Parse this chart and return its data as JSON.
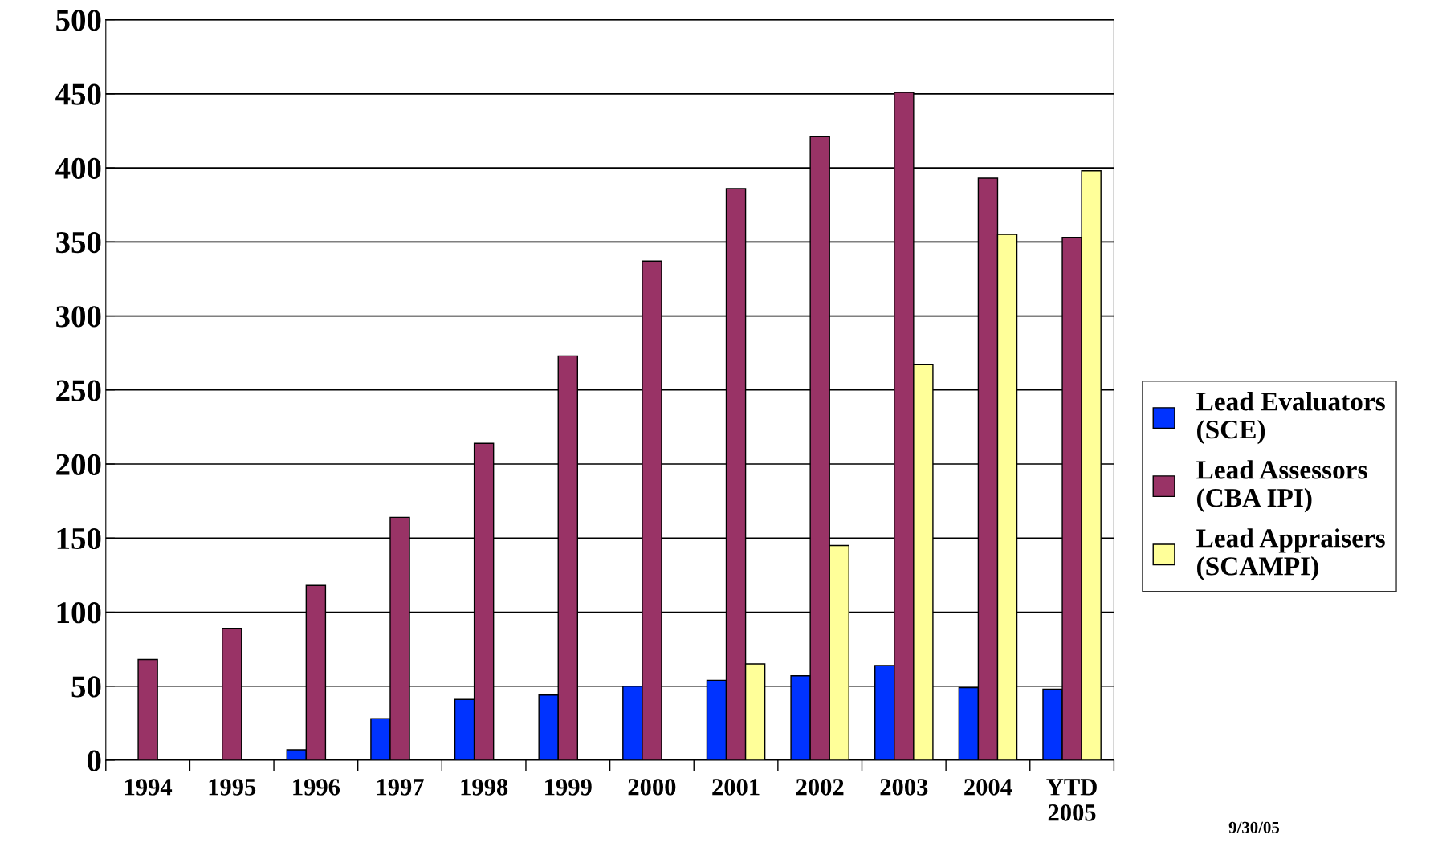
{
  "chart_data": {
    "type": "bar",
    "categories": [
      "1994",
      "1995",
      "1996",
      "1997",
      "1998",
      "1999",
      "2000",
      "2001",
      "2002",
      "2003",
      "2004",
      "YTD\n2005"
    ],
    "series": [
      {
        "name": "Lead Evaluators\n(SCE)",
        "color": "#0033ff",
        "values": [
          null,
          null,
          7,
          28,
          41,
          44,
          50,
          54,
          57,
          64,
          49,
          48
        ]
      },
      {
        "name": "Lead Assessors\n(CBA IPI)",
        "color": "#993366",
        "values": [
          68,
          89,
          118,
          164,
          214,
          273,
          337,
          386,
          421,
          451,
          393,
          353
        ]
      },
      {
        "name": "Lead Appraisers\n(SCAMPI)",
        "color": "#ffff99",
        "values": [
          null,
          null,
          null,
          null,
          null,
          null,
          null,
          65,
          145,
          267,
          355,
          398
        ]
      }
    ],
    "ylim": [
      0,
      500
    ],
    "yticks": [
      0,
      50,
      100,
      150,
      200,
      250,
      300,
      350,
      400,
      450,
      500
    ],
    "grid": "y",
    "legend": "right",
    "annotations": [
      "9/30/05"
    ]
  }
}
